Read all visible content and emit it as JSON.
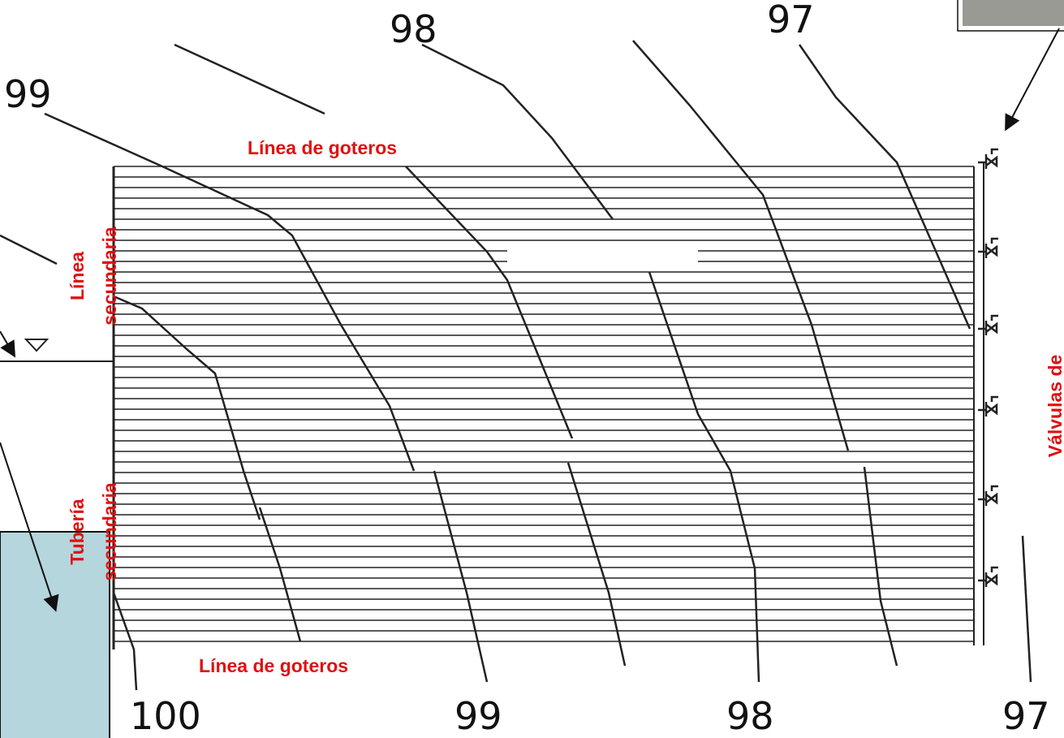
{
  "contours": {
    "top": [
      "99",
      "98",
      "97"
    ],
    "bottom": [
      "100",
      "99",
      "98",
      "97"
    ]
  },
  "labels": {
    "dripper_top": "Línea de goteros",
    "dripper_bottom": "Línea de goteros",
    "secondary_line": [
      "Línea",
      "secundaria"
    ],
    "secondary_pipe": [
      "Tubería",
      "secundaria"
    ],
    "valves": "Válvulas de"
  }
}
